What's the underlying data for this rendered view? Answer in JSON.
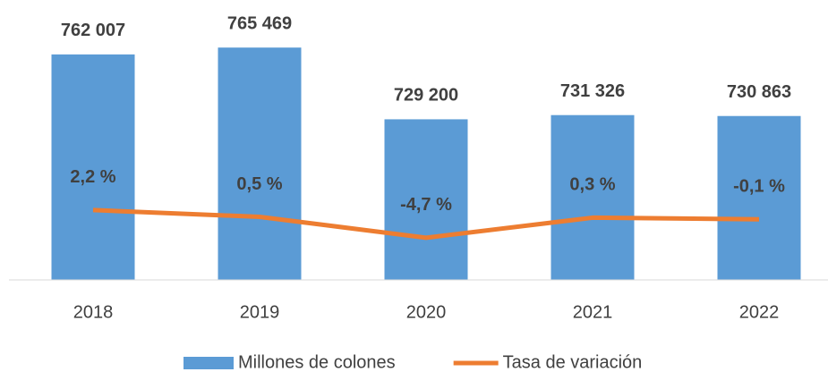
{
  "chart_data": {
    "type": "bar-line",
    "categories": [
      "2018",
      "2019",
      "2020",
      "2021",
      "2022"
    ],
    "series": [
      {
        "name": "Millones de colones",
        "type": "bar",
        "color": "#5b9bd5",
        "axis": "y",
        "values": [
          762007,
          765469,
          729200,
          731326,
          730863
        ],
        "value_labels": [
          "762 007",
          "765 469",
          "729 200",
          "731 326",
          "730 863"
        ]
      },
      {
        "name": "Tasa de variación",
        "type": "line",
        "color": "#ed7d31",
        "axis": "y2",
        "values": [
          2.2,
          0.5,
          -4.7,
          0.3,
          -0.1
        ],
        "value_labels": [
          "2,2 %",
          "0,5 %",
          "-4,7 %",
          "0,3 %",
          "-0,1 %"
        ]
      }
    ],
    "ylim": [
      648000,
      785000
    ],
    "y2lim": [
      -15.2,
      52.3
    ],
    "legend": "bottom"
  }
}
